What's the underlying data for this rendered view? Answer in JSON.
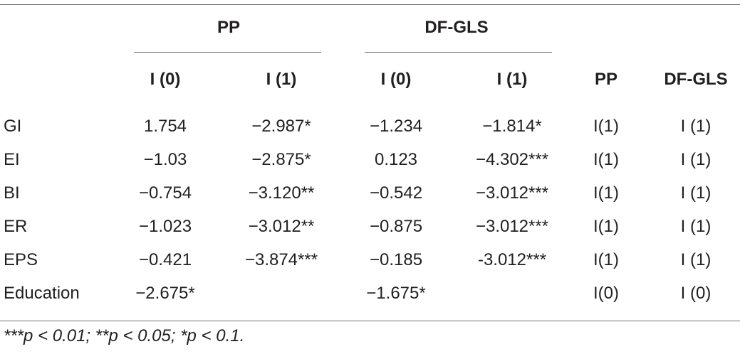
{
  "group_headers": {
    "pp": "PP",
    "dfgls": "DF-GLS"
  },
  "sub_headers": [
    "I (0)",
    "I (1)",
    "I (0)",
    "I (1)",
    "PP",
    "DF-GLS"
  ],
  "rows": [
    {
      "label": "GI",
      "cells": [
        "1.754",
        "−2.987*",
        "−1.234",
        "−1.814*",
        "I(1)",
        "I (1)"
      ]
    },
    {
      "label": "EI",
      "cells": [
        "−1.03",
        "−2.875*",
        "0.123",
        "−4.302***",
        "I(1)",
        "I (1)"
      ]
    },
    {
      "label": "BI",
      "cells": [
        "−0.754",
        "−3.120**",
        "−0.542",
        "−3.012***",
        "I(1)",
        "I (1)"
      ]
    },
    {
      "label": "ER",
      "cells": [
        "−1.023",
        "−3.012**",
        "−0.875",
        "−3.012***",
        "I(1)",
        "I (1)"
      ]
    },
    {
      "label": "EPS",
      "cells": [
        "−0.421",
        "−3.874***",
        "−0.185",
        "-3.012***",
        "I(1)",
        "I (1)"
      ]
    },
    {
      "label": "Education",
      "cells": [
        "−2.675*",
        "",
        "−1.675*",
        "",
        "I(0)",
        "I (0)"
      ]
    }
  ],
  "footnote": "***p < 0.01; **p < 0.05; *p < 0.1."
}
